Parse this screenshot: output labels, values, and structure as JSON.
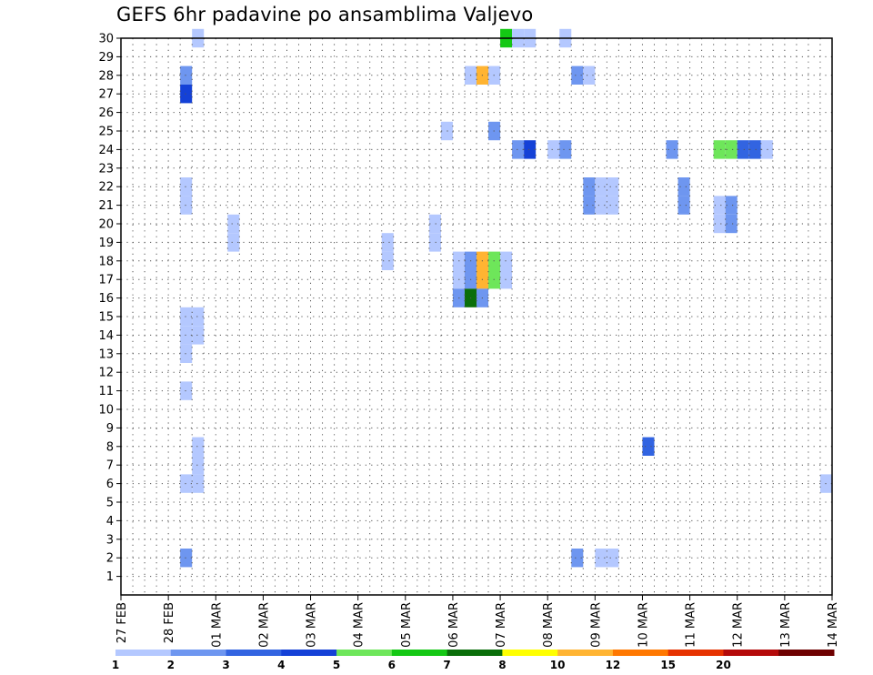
{
  "chart_data": {
    "type": "heatmap",
    "title": "GEFS 6hr padavine po ansamblima Valjevo",
    "x_tick_labels": [
      "27 FEB",
      "28 FEB",
      "01 MAR",
      "02 MAR",
      "03 MAR",
      "04 MAR",
      "05 MAR",
      "06 MAR",
      "07 MAR",
      "08 MAR",
      "09 MAR",
      "10 MAR",
      "11 MAR",
      "12 MAR",
      "13 MAR",
      "14 MAR"
    ],
    "x_range_days": [
      0,
      15
    ],
    "y_tick_labels": [
      "1",
      "2",
      "3",
      "4",
      "5",
      "6",
      "7",
      "8",
      "9",
      "10",
      "11",
      "12",
      "13",
      "14",
      "15",
      "16",
      "17",
      "18",
      "19",
      "20",
      "21",
      "22",
      "23",
      "24",
      "25",
      "26",
      "27",
      "28",
      "29",
      "30"
    ],
    "y_range": [
      0,
      30
    ],
    "grid": true,
    "colorbar": {
      "labels": [
        "1",
        "2",
        "3",
        "4",
        "5",
        "6",
        "7",
        "8",
        "10",
        "12",
        "15",
        "20"
      ],
      "colors": [
        "#b4c8ff",
        "#6e96f0",
        "#3264e1",
        "#1441d7",
        "#6ee65a",
        "#14c814",
        "#0a6e0a",
        "#ffff00",
        "#ffb432",
        "#ff7800",
        "#e63200",
        "#b40a0a",
        "#6e0000"
      ]
    },
    "steps_per_day": 4,
    "cells": [
      {
        "member": 30,
        "step": 6,
        "value": 1.5
      },
      {
        "member": 30,
        "step": 32,
        "value": 6.5
      },
      {
        "member": 30,
        "step": 33,
        "value": 1.5
      },
      {
        "member": 30,
        "step": 34,
        "value": 1.5
      },
      {
        "member": 30,
        "step": 37,
        "value": 1.5
      },
      {
        "member": 28,
        "step": 5,
        "value": 2.5
      },
      {
        "member": 28,
        "step": 29,
        "value": 1.5
      },
      {
        "member": 28,
        "step": 30,
        "value": 10
      },
      {
        "member": 28,
        "step": 31,
        "value": 1.5
      },
      {
        "member": 28,
        "step": 38,
        "value": 2.5
      },
      {
        "member": 28,
        "step": 39,
        "value": 1.5
      },
      {
        "member": 27,
        "step": 5,
        "value": 4.5
      },
      {
        "member": 25,
        "step": 27,
        "value": 1.5
      },
      {
        "member": 25,
        "step": 31,
        "value": 2.5
      },
      {
        "member": 24,
        "step": 33,
        "value": 2.5
      },
      {
        "member": 24,
        "step": 34,
        "value": 4.5
      },
      {
        "member": 24,
        "step": 36,
        "value": 1.5
      },
      {
        "member": 24,
        "step": 37,
        "value": 2.5
      },
      {
        "member": 24,
        "step": 46,
        "value": 2.5
      },
      {
        "member": 24,
        "step": 50,
        "value": 5.5
      },
      {
        "member": 24,
        "step": 51,
        "value": 5.5
      },
      {
        "member": 24,
        "step": 52,
        "value": 3.5
      },
      {
        "member": 24,
        "step": 53,
        "value": 3.5
      },
      {
        "member": 24,
        "step": 54,
        "value": 1.5
      },
      {
        "member": 22,
        "step": 5,
        "value": 1.5
      },
      {
        "member": 22,
        "step": 39,
        "value": 2.5
      },
      {
        "member": 22,
        "step": 40,
        "value": 1.5
      },
      {
        "member": 22,
        "step": 41,
        "value": 1.5
      },
      {
        "member": 22,
        "step": 47,
        "value": 2.5
      },
      {
        "member": 21,
        "step": 5,
        "value": 1.5
      },
      {
        "member": 21,
        "step": 39,
        "value": 2.5
      },
      {
        "member": 21,
        "step": 40,
        "value": 1.5
      },
      {
        "member": 21,
        "step": 41,
        "value": 1.5
      },
      {
        "member": 21,
        "step": 47,
        "value": 2.5
      },
      {
        "member": 21,
        "step": 50,
        "value": 1.5
      },
      {
        "member": 21,
        "step": 51,
        "value": 2.5
      },
      {
        "member": 20,
        "step": 9,
        "value": 1.5
      },
      {
        "member": 20,
        "step": 26,
        "value": 1.5
      },
      {
        "member": 20,
        "step": 50,
        "value": 1.5
      },
      {
        "member": 20,
        "step": 51,
        "value": 2.5
      },
      {
        "member": 19,
        "step": 9,
        "value": 1.5
      },
      {
        "member": 19,
        "step": 26,
        "value": 1.5
      },
      {
        "member": 19,
        "step": 22,
        "value": 1.5
      },
      {
        "member": 18,
        "step": 22,
        "value": 1.5
      },
      {
        "member": 18,
        "step": 28,
        "value": 1.5
      },
      {
        "member": 18,
        "step": 29,
        "value": 2.5
      },
      {
        "member": 18,
        "step": 30,
        "value": 10
      },
      {
        "member": 18,
        "step": 31,
        "value": 5.5
      },
      {
        "member": 18,
        "step": 32,
        "value": 1.5
      },
      {
        "member": 17,
        "step": 28,
        "value": 1.5
      },
      {
        "member": 17,
        "step": 29,
        "value": 2.5
      },
      {
        "member": 17,
        "step": 30,
        "value": 10
      },
      {
        "member": 17,
        "step": 31,
        "value": 5.5
      },
      {
        "member": 17,
        "step": 32,
        "value": 1.5
      },
      {
        "member": 16,
        "step": 28,
        "value": 2.5
      },
      {
        "member": 16,
        "step": 29,
        "value": 7.5
      },
      {
        "member": 16,
        "step": 30,
        "value": 2.5
      },
      {
        "member": 15,
        "step": 5,
        "value": 1.5
      },
      {
        "member": 15,
        "step": 6,
        "value": 1.5
      },
      {
        "member": 14,
        "step": 5,
        "value": 1.5
      },
      {
        "member": 14,
        "step": 6,
        "value": 1.5
      },
      {
        "member": 13,
        "step": 5,
        "value": 1.5
      },
      {
        "member": 11,
        "step": 5,
        "value": 1.5
      },
      {
        "member": 8,
        "step": 6,
        "value": 1.5
      },
      {
        "member": 8,
        "step": 44,
        "value": 3.5
      },
      {
        "member": 7,
        "step": 6,
        "value": 1.5
      },
      {
        "member": 6,
        "step": 5,
        "value": 1.5
      },
      {
        "member": 6,
        "step": 6,
        "value": 1.5
      },
      {
        "member": 6,
        "step": 59,
        "value": 1.5
      },
      {
        "member": 2,
        "step": 5,
        "value": 2.5
      },
      {
        "member": 2,
        "step": 38,
        "value": 2.5
      },
      {
        "member": 2,
        "step": 40,
        "value": 1.5
      },
      {
        "member": 2,
        "step": 41,
        "value": 1.5
      }
    ]
  }
}
